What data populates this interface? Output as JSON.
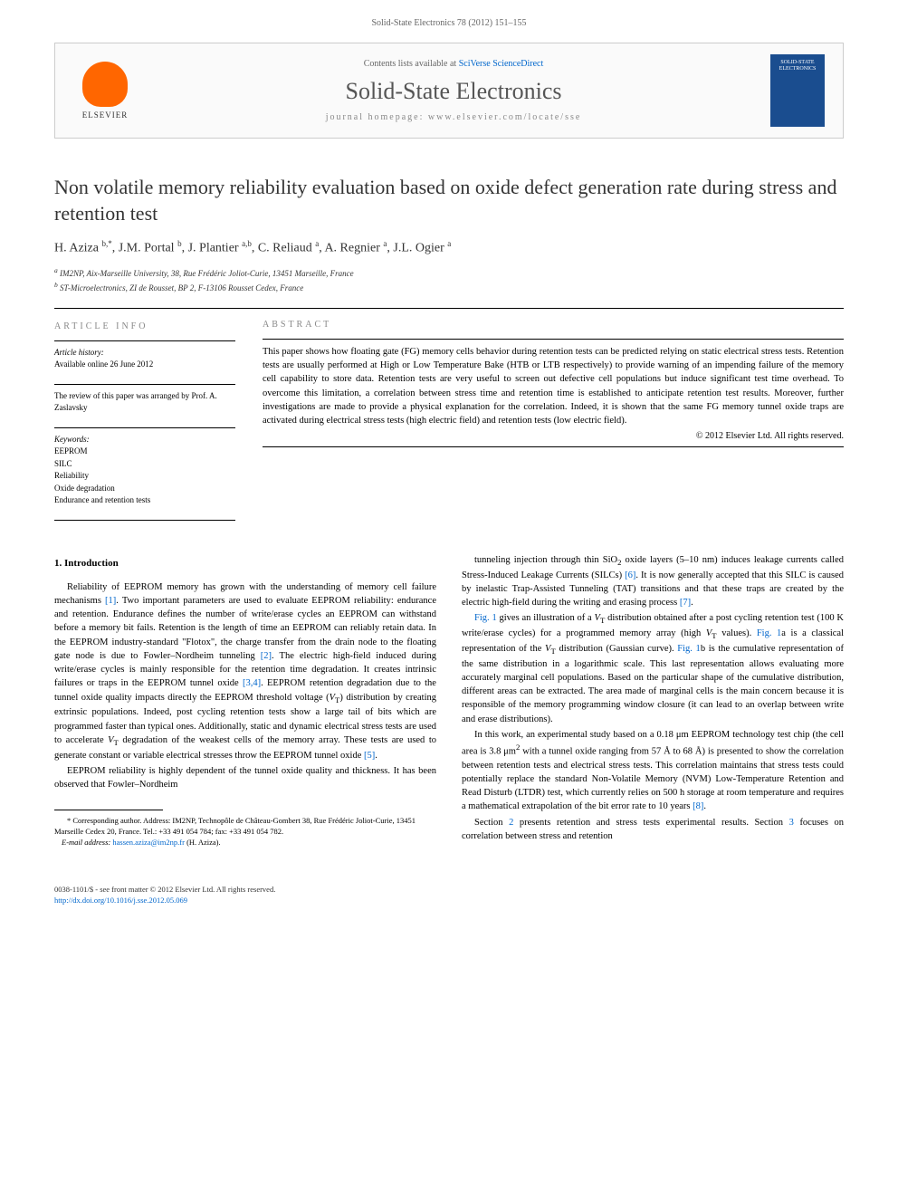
{
  "header": {
    "running_head": "Solid-State Electronics 78 (2012) 151–155",
    "contents_prefix": "Contents lists available at ",
    "contents_link": "SciVerse ScienceDirect",
    "journal_name": "Solid-State Electronics",
    "homepage_label": "journal homepage: www.elsevier.com/locate/sse",
    "publisher_name": "ELSEVIER",
    "cover_text": "SOLID-STATE ELECTRONICS"
  },
  "title": "Non volatile memory reliability evaluation based on oxide defect generation rate during stress and retention test",
  "authors_html": "H. Aziza <sup>b,*</sup>, J.M. Portal <sup>b</sup>, J. Plantier <sup>a,b</sup>, C. Reliaud <sup>a</sup>, A. Regnier <sup>a</sup>, J.L. Ogier <sup>a</sup>",
  "affiliations": {
    "a": "IM2NP, Aix-Marseille University, 38, Rue Frédéric Joliot-Curie, 13451 Marseille, France",
    "b": "ST-Microelectronics, ZI de Rousset, BP 2, F-13106 Rousset Cedex, France"
  },
  "article_info": {
    "heading": "ARTICLE INFO",
    "history_label": "Article history:",
    "history_text": "Available online 26 June 2012",
    "review_text": "The review of this paper was arranged by Prof. A. Zaslavsky",
    "keywords_label": "Keywords:",
    "keywords": [
      "EEPROM",
      "SILC",
      "Reliability",
      "Oxide degradation",
      "Endurance and retention tests"
    ]
  },
  "abstract": {
    "heading": "ABSTRACT",
    "text": "This paper shows how floating gate (FG) memory cells behavior during retention tests can be predicted relying on static electrical stress tests. Retention tests are usually performed at High or Low Temperature Bake (HTB or LTB respectively) to provide warning of an impending failure of the memory cell capability to store data. Retention tests are very useful to screen out defective cell populations but induce significant test time overhead. To overcome this limitation, a correlation between stress time and retention time is established to anticipate retention test results. Moreover, further investigations are made to provide a physical explanation for the correlation. Indeed, it is shown that the same FG memory tunnel oxide traps are activated during electrical stress tests (high electric field) and retention tests (low electric field).",
    "copyright": "© 2012 Elsevier Ltd. All rights reserved."
  },
  "section1": {
    "heading": "1. Introduction",
    "p1": "Reliability of EEPROM memory has grown with the understanding of memory cell failure mechanisms [1]. Two important parameters are used to evaluate EEPROM reliability: endurance and retention. Endurance defines the number of write/erase cycles an EEPROM can withstand before a memory bit fails. Retention is the length of time an EEPROM can reliably retain data. In the EEPROM industry-standard \"Flotox\", the charge transfer from the drain node to the floating gate node is due to Fowler–Nordheim tunneling [2]. The electric high-field induced during write/erase cycles is mainly responsible for the retention time degradation. It creates intrinsic failures or traps in the EEPROM tunnel oxide [3,4]. EEPROM retention degradation due to the tunnel oxide quality impacts directly the EEPROM threshold voltage (VT) distribution by creating extrinsic populations. Indeed, post cycling retention tests show a large tail of bits which are programmed faster than typical ones. Additionally, static and dynamic electrical stress tests are used to accelerate VT degradation of the weakest cells of the memory array. These tests are used to generate constant or variable electrical stresses throw the EEPROM tunnel oxide [5].",
    "p2": "EEPROM reliability is highly dependent of the tunnel oxide quality and thickness. It has been observed that Fowler–Nordheim",
    "p3": "tunneling injection through thin SiO2 oxide layers (5–10 nm) induces leakage currents called Stress-Induced Leakage Currents (SILCs) [6]. It is now generally accepted that this SILC is caused by inelastic Trap-Assisted Tunneling (TAT) transitions and that these traps are created by the electric high-field during the writing and erasing process [7].",
    "p4": "Fig. 1 gives an illustration of a VT distribution obtained after a post cycling retention test (100 K write/erase cycles) for a programmed memory array (high VT values). Fig. 1a is a classical representation of the VT distribution (Gaussian curve). Fig. 1b is the cumulative representation of the same distribution in a logarithmic scale. This last representation allows evaluating more accurately marginal cell populations. Based on the particular shape of the cumulative distribution, different areas can be extracted. The area made of marginal cells is the main concern because it is responsible of the memory programming window closure (it can lead to an overlap between write and erase distributions).",
    "p5": "In this work, an experimental study based on a 0.18 μm EEPROM technology test chip (the cell area is 3.8 μm2 with a tunnel oxide ranging from 57 Å to 68 Å) is presented to show the correlation between retention tests and electrical stress tests. This correlation maintains that stress tests could potentially replace the standard Non-Volatile Memory (NVM) Low-Temperature Retention and Read Disturb (LTDR) test, which currently relies on 500 h storage at room temperature and requires a mathematical extrapolation of the bit error rate to 10 years [8].",
    "p6": "Section 2 presents retention and stress tests experimental results. Section 3 focuses on correlation between stress and retention"
  },
  "footnotes": {
    "corresponding": "* Corresponding author. Address: IM2NP, Technopôle de Château-Gombert 38, Rue Frédéric Joliot-Curie, 13451 Marseille Cedex 20, France. Tel.: +33 491 054 784; fax: +33 491 054 782.",
    "email_label": "E-mail address:",
    "email": "hassen.aziza@im2np.fr",
    "email_name": "(H. Aziza)."
  },
  "footer": {
    "line1": "0038-1101/$ - see front matter © 2012 Elsevier Ltd. All rights reserved.",
    "line2": "http://dx.doi.org/10.1016/j.sse.2012.05.069"
  },
  "colors": {
    "link": "#0066cc",
    "elsevier_orange": "#ff6600",
    "cover_blue": "#1a4d8f",
    "text_gray": "#666666",
    "heading_gray": "#888888"
  }
}
